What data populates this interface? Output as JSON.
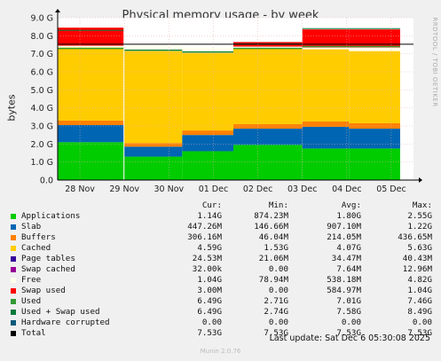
{
  "chart_data": {
    "type": "area",
    "title": "Physical memory usage - by week",
    "ylabel": "bytes",
    "ylim": [
      0,
      9
    ],
    "yunit": "G",
    "yticks": [
      "0.0",
      "1.0 G",
      "2.0 G",
      "3.0 G",
      "4.0 G",
      "5.0 G",
      "6.0 G",
      "7.0 G",
      "8.0 G",
      "9.0 G"
    ],
    "xticks": [
      "28 Nov",
      "29 Nov",
      "30 Nov",
      "01 Dec",
      "02 Dec",
      "03 Dec",
      "04 Dec",
      "05 Dec"
    ],
    "grid": true,
    "stacked": true,
    "stack_order": [
      "Applications",
      "Slab",
      "Buffers",
      "Cached",
      "Free",
      "Swap used"
    ],
    "series_summary": [
      {
        "name": "Applications",
        "color": "#00cc00",
        "cur": "1.14G",
        "min": "874.23M",
        "avg": "1.80G",
        "max": "2.55G"
      },
      {
        "name": "Slab",
        "color": "#0066b3",
        "cur": "447.26M",
        "min": "146.66M",
        "avg": "907.10M",
        "max": "1.22G"
      },
      {
        "name": "Buffers",
        "color": "#ff8000",
        "cur": "306.16M",
        "min": "46.04M",
        "avg": "214.05M",
        "max": "436.65M"
      },
      {
        "name": "Cached",
        "color": "#ffcc00",
        "cur": "4.59G",
        "min": "1.53G",
        "avg": "4.07G",
        "max": "5.63G"
      },
      {
        "name": "Page tables",
        "color": "#330099",
        "cur": "24.53M",
        "min": "21.06M",
        "avg": "34.47M",
        "max": "40.43M"
      },
      {
        "name": "Swap cached",
        "color": "#990099",
        "cur": "32.00k",
        "min": "0.00",
        "avg": "7.64M",
        "max": "12.96M"
      },
      {
        "name": "Free",
        "color": "#ffffee",
        "cur": "1.04G",
        "min": "78.94M",
        "avg": "538.18M",
        "max": "4.82G"
      },
      {
        "name": "Swap used",
        "color": "#ff0000",
        "cur": "3.00M",
        "min": "0.00",
        "avg": "584.97M",
        "max": "1.04G"
      },
      {
        "name": "Used",
        "color": "#339933",
        "cur": "6.49G",
        "min": "2.71G",
        "avg": "7.01G",
        "max": "7.46G"
      },
      {
        "name": "Used + Swap used",
        "color": "#0a7a3a",
        "cur": "6.49G",
        "min": "2.74G",
        "avg": "7.58G",
        "max": "8.49G"
      },
      {
        "name": "Hardware corrupted",
        "color": "#0b5a7a",
        "cur": "0.00",
        "min": "0.00",
        "avg": "0.00",
        "max": "0.00"
      },
      {
        "name": "Total",
        "color": "#000000",
        "cur": "7.53G",
        "min": "7.53G",
        "avg": "7.53G",
        "max": "7.53G"
      }
    ],
    "segments": [
      {
        "from": 0.0,
        "to": 1.48,
        "apps": 2.1,
        "slab": 0.95,
        "buffers": 0.25,
        "cached": 4.05,
        "free": 0.1,
        "swap": 1.0,
        "used_top": 7.3
      },
      {
        "from": 1.5,
        "to": 2.8,
        "apps": 1.3,
        "slab": 0.55,
        "buffers": 0.2,
        "cached": 5.1,
        "free": 0.3,
        "swap": 0.0,
        "used_top": 7.2
      },
      {
        "from": 2.8,
        "to": 3.95,
        "apps": 1.6,
        "slab": 0.9,
        "buffers": 0.25,
        "cached": 4.3,
        "free": 0.3,
        "swap": 0.0,
        "used_top": 7.1
      },
      {
        "from": 3.95,
        "to": 5.5,
        "apps": 1.95,
        "slab": 0.9,
        "buffers": 0.25,
        "cached": 4.2,
        "free": 0.1,
        "swap": 0.25,
        "used_top": 7.3
      },
      {
        "from": 5.5,
        "to": 6.55,
        "apps": 1.75,
        "slab": 1.2,
        "buffers": 0.3,
        "cached": 4.0,
        "free": 0.1,
        "swap": 1.0,
        "used_top": 7.4
      },
      {
        "from": 6.55,
        "to": 7.7,
        "apps": 1.75,
        "slab": 1.1,
        "buffers": 0.3,
        "cached": 4.0,
        "free": 0.2,
        "swap": 1.0,
        "used_top": 7.4
      }
    ]
  },
  "side_text": "RRDTOOL / TOBI OETIKER",
  "legend_headers": {
    "cur": "Cur:",
    "min": "Min:",
    "avg": "Avg:",
    "max": "Max:"
  },
  "last_update": "Last update: Sat Dec  6 05:30:08 2025",
  "munin_version": "Munin 2.0.76"
}
